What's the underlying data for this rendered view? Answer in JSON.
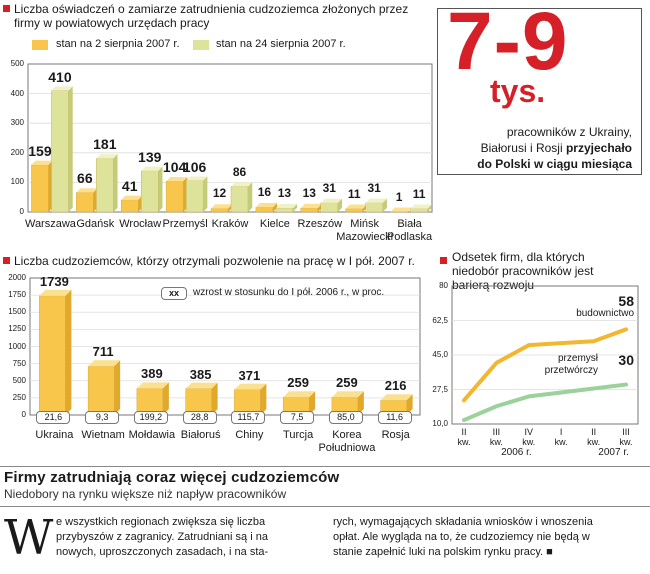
{
  "chart_data": [
    {
      "type": "bar",
      "title": "Liczba oświadczeń o zamiarze zatrudnienia cudzoziemca złożonych przez firmy w powiatowych urzędach pracy",
      "categories": [
        "Warszawa",
        "Gdańsk",
        "Wrocław",
        "Przemyśl",
        "Kraków",
        "Kielce",
        "Rzeszów",
        "Mińsk Mazowiecki",
        "Biała Podlaska"
      ],
      "series": [
        {
          "name": "stan na 2 sierpnia 2007 r.",
          "values": [
            159,
            66,
            41,
            104,
            12,
            16,
            13,
            11,
            1
          ]
        },
        {
          "name": "stan na 24 sierpnia 2007 r.",
          "values": [
            410,
            181,
            139,
            106,
            86,
            13,
            31,
            31,
            11
          ]
        }
      ],
      "ylim": [
        0,
        500
      ],
      "yticks": [
        0,
        100,
        200,
        300,
        400,
        500
      ]
    },
    {
      "type": "bar",
      "title": "Liczba cudzoziemców, którzy otrzymali pozwolenie na pracę w I pół. 2007 r.",
      "categories": [
        "Ukraina",
        "Wietnam",
        "Mołdawia",
        "Białoruś",
        "Chiny",
        "Turcja",
        "Korea Południowa",
        "Rosja"
      ],
      "values": [
        1739,
        711,
        389,
        385,
        371,
        259,
        259,
        216
      ],
      "growth": [
        "21,6",
        "9,3",
        "199,2",
        "28,8",
        "115,7",
        "7,5",
        "85,0",
        "11,6"
      ],
      "legend_box": "xx",
      "legend_text": "wzrost w stosunku do I pół. 2006 r., w proc.",
      "ylim": [
        0,
        2000
      ],
      "yticks": [
        0,
        250,
        500,
        750,
        1000,
        1250,
        1500,
        1750,
        2000
      ]
    },
    {
      "type": "line",
      "title": "Odsetek firm, dla których niedobór pracowników jest barierą rozwoju",
      "x": [
        "II kw.",
        "III kw.",
        "IV kw.",
        "I kw.",
        "II kw.",
        "III kw."
      ],
      "year_labels": [
        "2006 r.",
        "2007 r."
      ],
      "series": [
        {
          "name": "budownictwo",
          "values": [
            22,
            41,
            50,
            51,
            52,
            58
          ],
          "end_label": "58"
        },
        {
          "name": "przemysł przetwórczy",
          "values": [
            12,
            19,
            24,
            26,
            28,
            30
          ],
          "end_label": "30"
        }
      ],
      "ylim": [
        10,
        80
      ],
      "yticks": [
        "10,0",
        "27,5",
        "45,0",
        "62,5",
        "80"
      ]
    }
  ],
  "colors": {
    "accent": "#d62027",
    "bar_a": "#f7c64a",
    "bar_b": "#dde39a",
    "line_a": "#f2b630",
    "line_b": "#9bd19b"
  },
  "headline": {
    "big": "7-9",
    "unit": "tys.",
    "text1": "pracowników z Ukrainy,",
    "text2": "Białorusi i Rosji ",
    "text2b": "przyjechało",
    "text3": "do Polski w ciągu miesiąca"
  },
  "article": {
    "title": "Firmy zatrudniają coraz więcej cudzoziemców",
    "subtitle": "Niedobory na rynku większe niż napływ pracowników",
    "dropcap": "W",
    "col1_l1": "e wszystkich regionach zwiększa się liczba",
    "col1_l2": "przybyszów z zagranicy. Zatrudniani są i na",
    "col1_l3": "nowych, uproszczonych zasadach, i na sta-",
    "col2_l1": "rych, wymagających składania wniosków i wnoszenia",
    "col2_l2": "opłat. Ale wygląda na to, że cudzoziemcy nie będą w",
    "col2_l3": "stanie zapełnić luki na polskim rynku pracy. ■"
  }
}
